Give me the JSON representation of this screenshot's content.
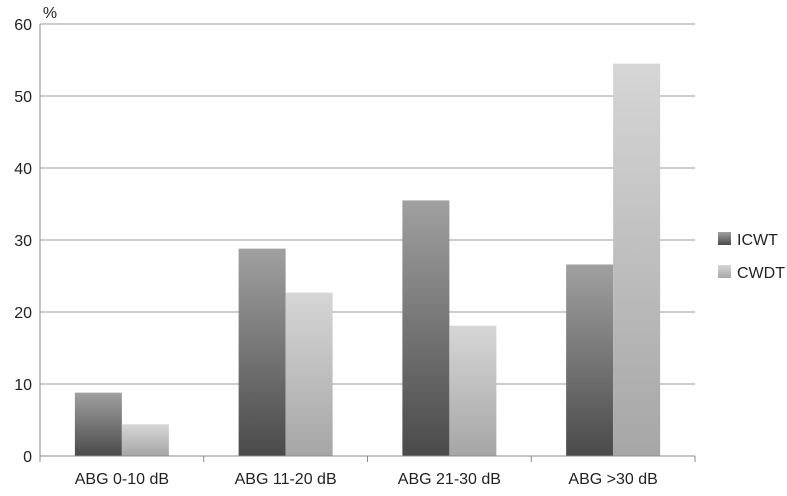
{
  "chart_data": {
    "type": "bar",
    "ylabel": "%",
    "ylim": [
      0,
      60
    ],
    "yticks": [
      0,
      10,
      20,
      30,
      40,
      50,
      60
    ],
    "grid": true,
    "legend": "right",
    "categories": [
      "ABG 0-10 dB",
      "ABG 11-20 dB",
      "ABG 21-30 dB",
      "ABG >30 dB"
    ],
    "series": [
      {
        "name": "ICWT",
        "values": [
          8.8,
          28.8,
          35.5,
          26.6
        ],
        "color_top": "#a0a0a0",
        "color_bottom": "#4a4a4a"
      },
      {
        "name": "CWDT",
        "values": [
          4.4,
          22.7,
          18.1,
          54.5
        ],
        "color_top": "#d6d6d6",
        "color_bottom": "#a6a6a6"
      }
    ]
  }
}
